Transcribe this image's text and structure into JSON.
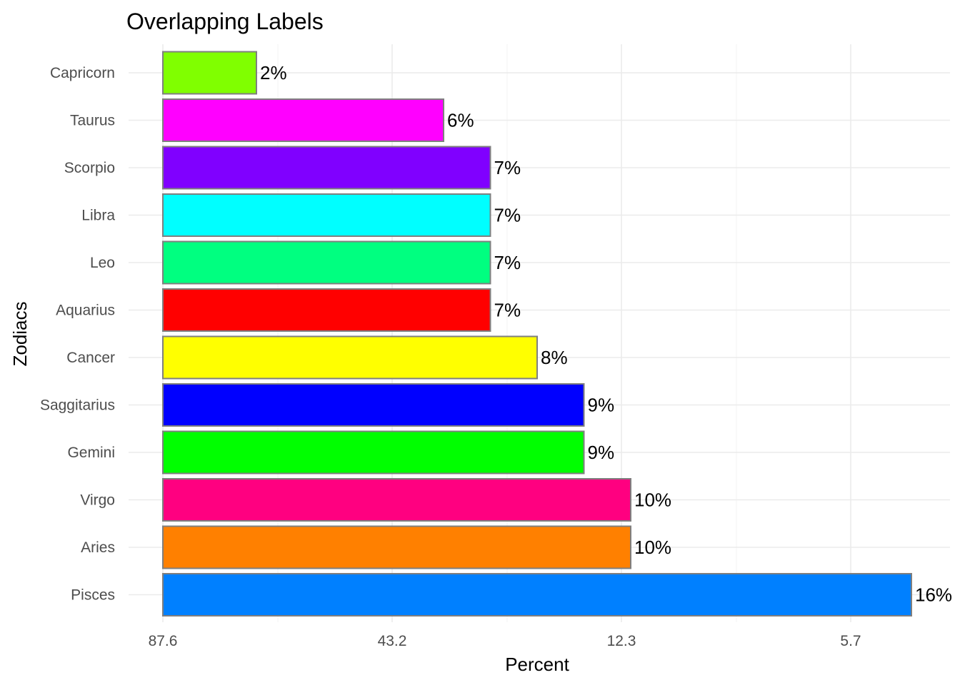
{
  "chart_data": {
    "type": "bar",
    "orientation": "horizontal",
    "title": "Overlapping Labels",
    "xlabel": "Percent",
    "ylabel": "Zodiacs",
    "x_tick_labels": [
      "87.6",
      "43.2",
      "12.3",
      "5.7"
    ],
    "grid": true,
    "legend": "none",
    "categories": [
      "Capricorn",
      "Taurus",
      "Scorpio",
      "Libra",
      "Leo",
      "Aquarius",
      "Cancer",
      "Saggitarius",
      "Gemini",
      "Virgo",
      "Aries",
      "Pisces"
    ],
    "values": [
      2,
      6,
      7,
      7,
      7,
      7,
      8,
      9,
      9,
      10,
      10,
      16
    ],
    "labels": [
      "2%",
      "6%",
      "7%",
      "7%",
      "7%",
      "7%",
      "8%",
      "9%",
      "9%",
      "10%",
      "10%",
      "16%"
    ],
    "colors": [
      "#80FF00",
      "#FF00FF",
      "#8000FF",
      "#00FFFF",
      "#00FF80",
      "#FF0000",
      "#FFFF00",
      "#0000FF",
      "#00FF00",
      "#FF0080",
      "#FF8000",
      "#0080FF"
    ]
  }
}
